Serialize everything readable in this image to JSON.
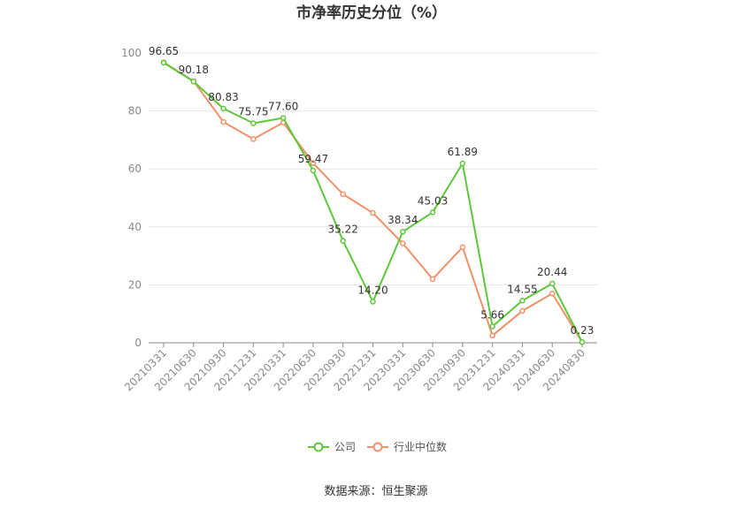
{
  "chart_data": {
    "type": "line",
    "title": "市净率历史分位（%）",
    "x": [
      "20210331",
      "20210630",
      "20210930",
      "20211231",
      "20220331",
      "20220630",
      "20220930",
      "20221231",
      "20230331",
      "20230630",
      "20230930",
      "20231231",
      "20240331",
      "20240630",
      "20240830"
    ],
    "ylim": [
      0,
      100
    ],
    "yticks": [
      0,
      20,
      40,
      60,
      80,
      100
    ],
    "grid": true,
    "legend_position": "bottom",
    "series": [
      {
        "name": "公司",
        "color": "#5cc83a",
        "values": [
          96.65,
          90.18,
          80.83,
          75.75,
          77.6,
          59.47,
          35.22,
          14.2,
          38.34,
          45.03,
          61.89,
          5.66,
          14.55,
          20.44,
          0.23
        ],
        "labels": [
          "96.65",
          "90.18",
          "80.83",
          "75.75",
          "77.60",
          "59.47",
          "35.22",
          "14.20",
          "38.34",
          "45.03",
          "61.89",
          "5.66",
          "14.55",
          "20.44",
          "0.23"
        ]
      },
      {
        "name": "行业中位数",
        "color": "#f29068",
        "values": [
          96.8,
          90.3,
          76.2,
          70.3,
          76.0,
          62.0,
          51.3,
          44.8,
          34.3,
          22.0,
          33.0,
          2.5,
          11.0,
          17.0,
          0.2
        ]
      }
    ],
    "source": "数据来源：恒生聚源"
  }
}
